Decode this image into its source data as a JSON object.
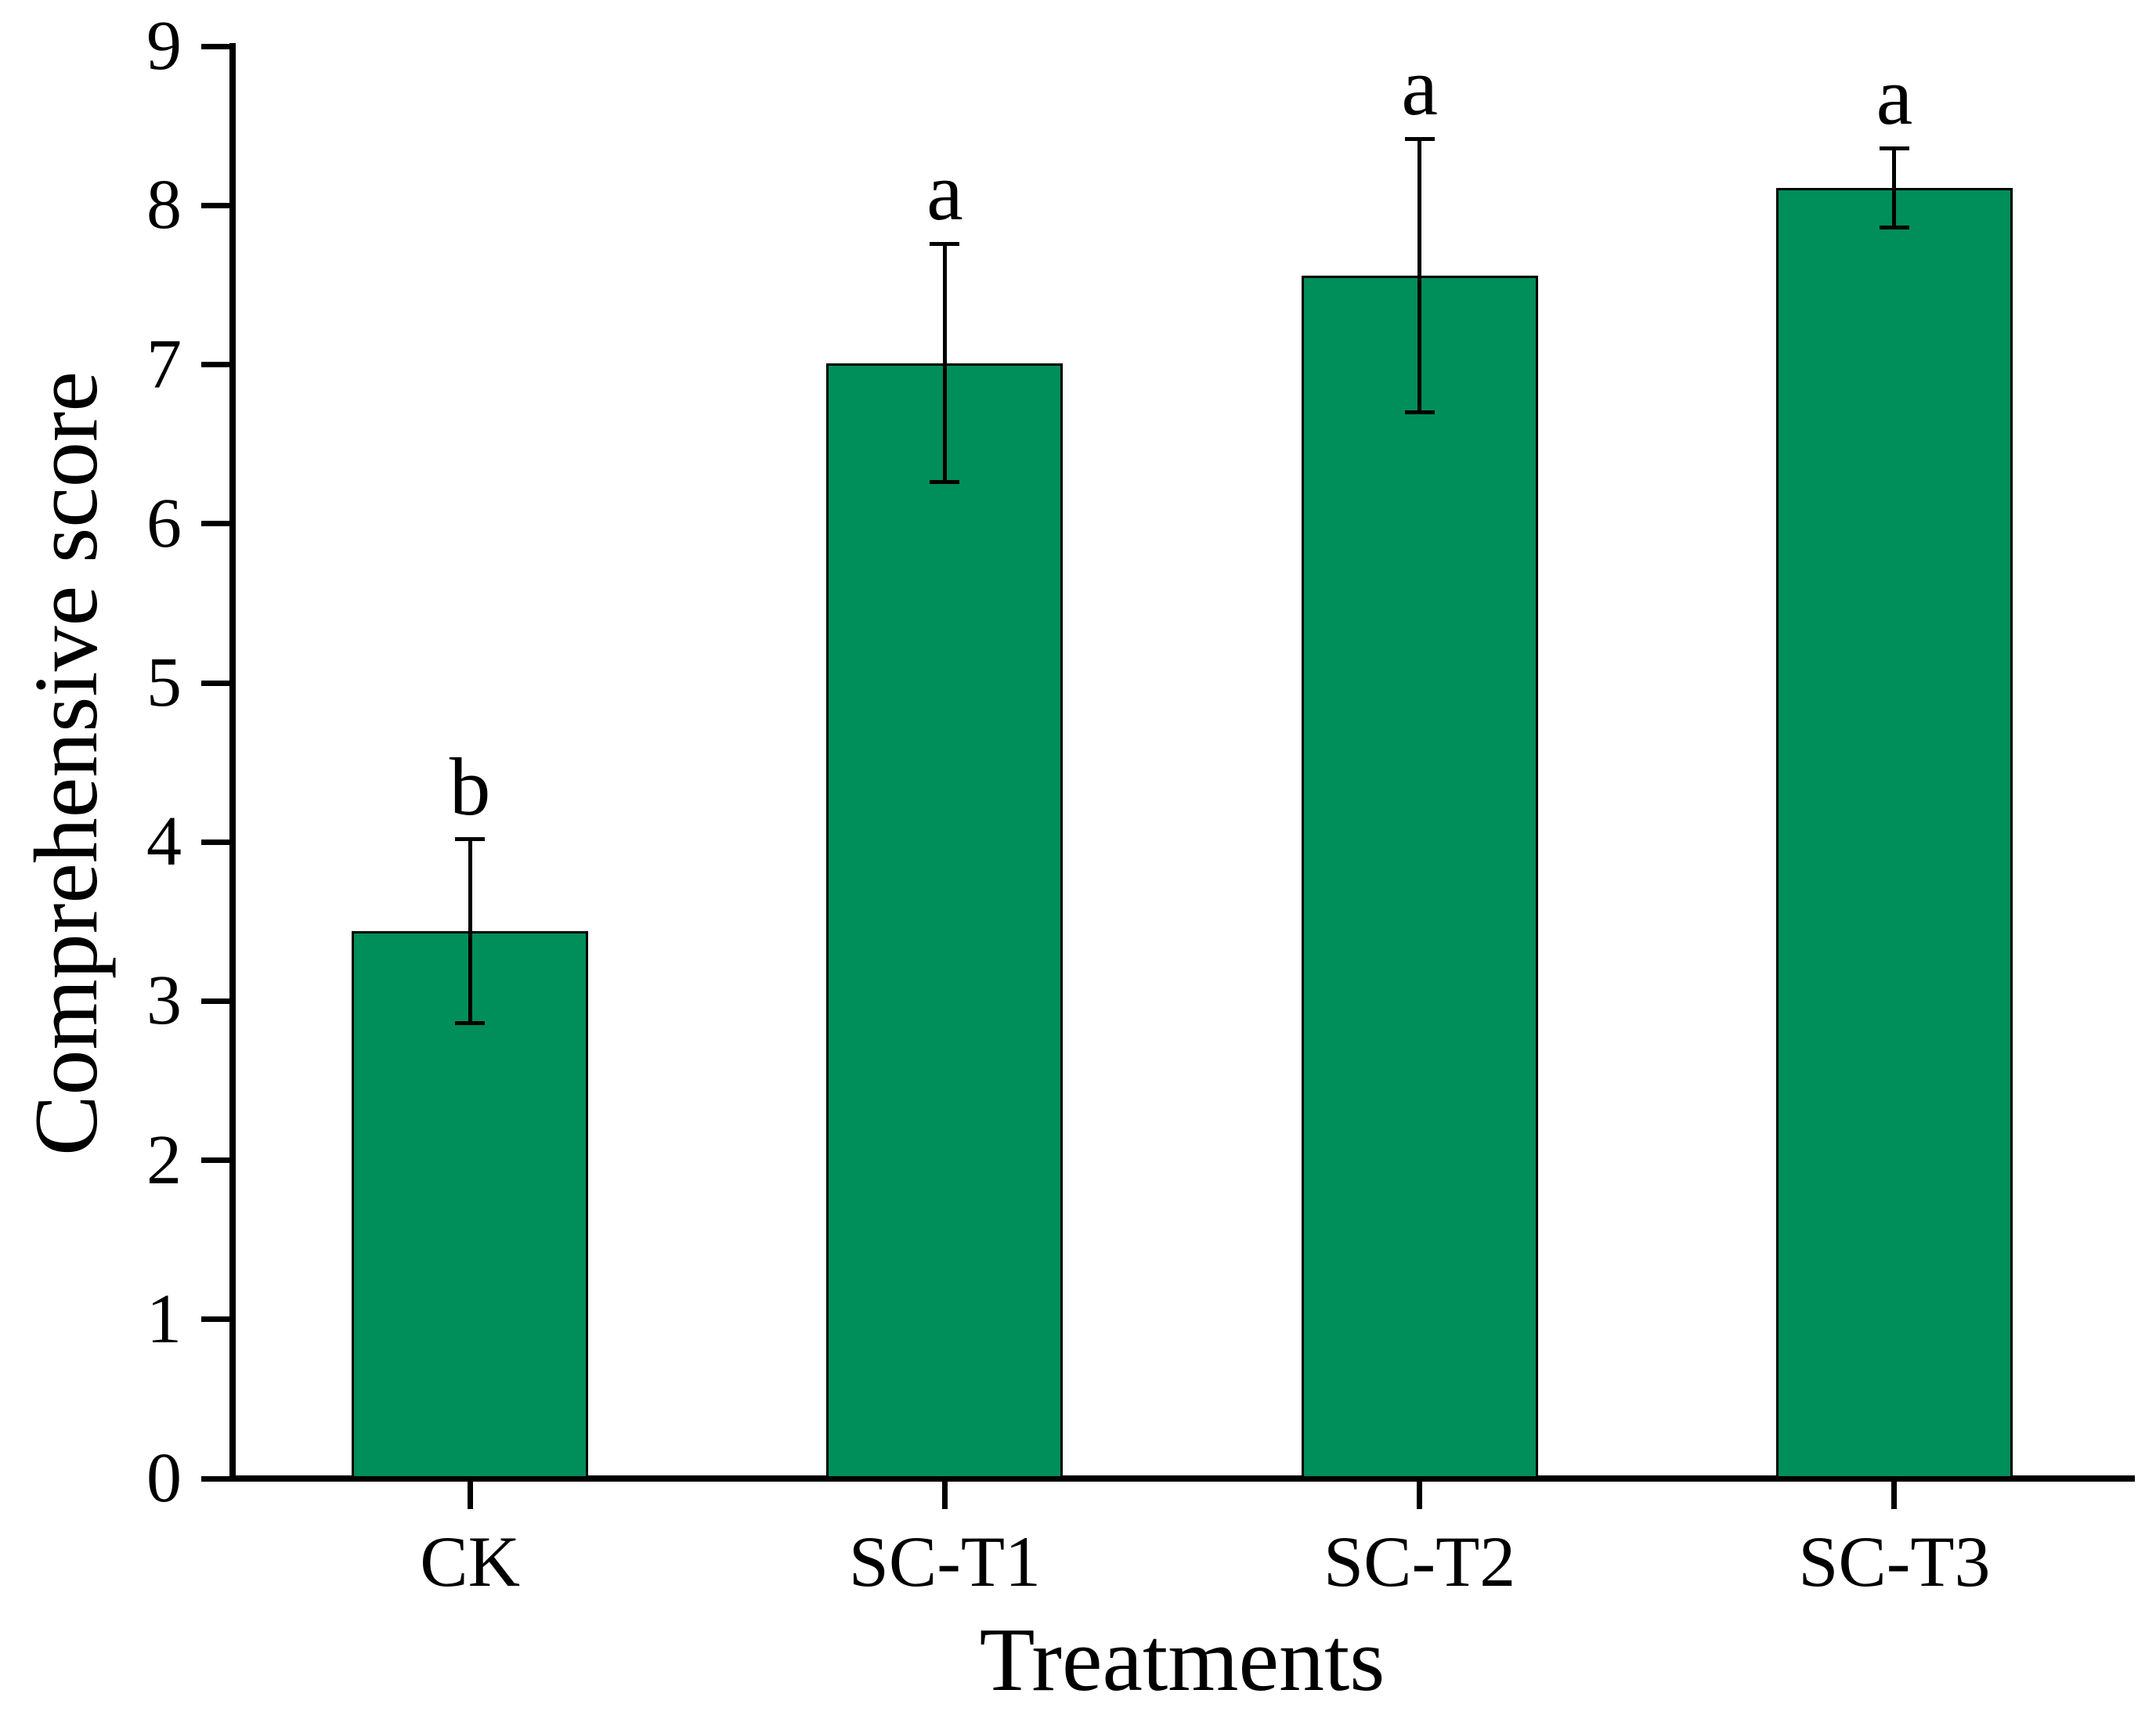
{
  "chart_data": {
    "type": "bar",
    "title": "",
    "xlabel": "Treatments",
    "ylabel": "Comprehensive score",
    "categories": [
      "CK",
      "SC-T1",
      "SC-T2",
      "SC-T3"
    ],
    "values": [
      3.44,
      7.01,
      7.56,
      8.11
    ],
    "errors": [
      0.58,
      0.75,
      0.86,
      0.25
    ],
    "sig_letters": [
      "b",
      "a",
      "a",
      "a"
    ],
    "ylim": [
      0,
      9
    ],
    "yticks": [
      0,
      1,
      2,
      3,
      4,
      5,
      6,
      7,
      8,
      9
    ],
    "grid": false,
    "legend_position": "none",
    "bar_color": "#008E5A",
    "bar_edge_color": "#000000",
    "error_bar_color": "#000000",
    "axis_color": "#000000",
    "text_color": "#000000",
    "background_color": "#FFFFFF"
  }
}
